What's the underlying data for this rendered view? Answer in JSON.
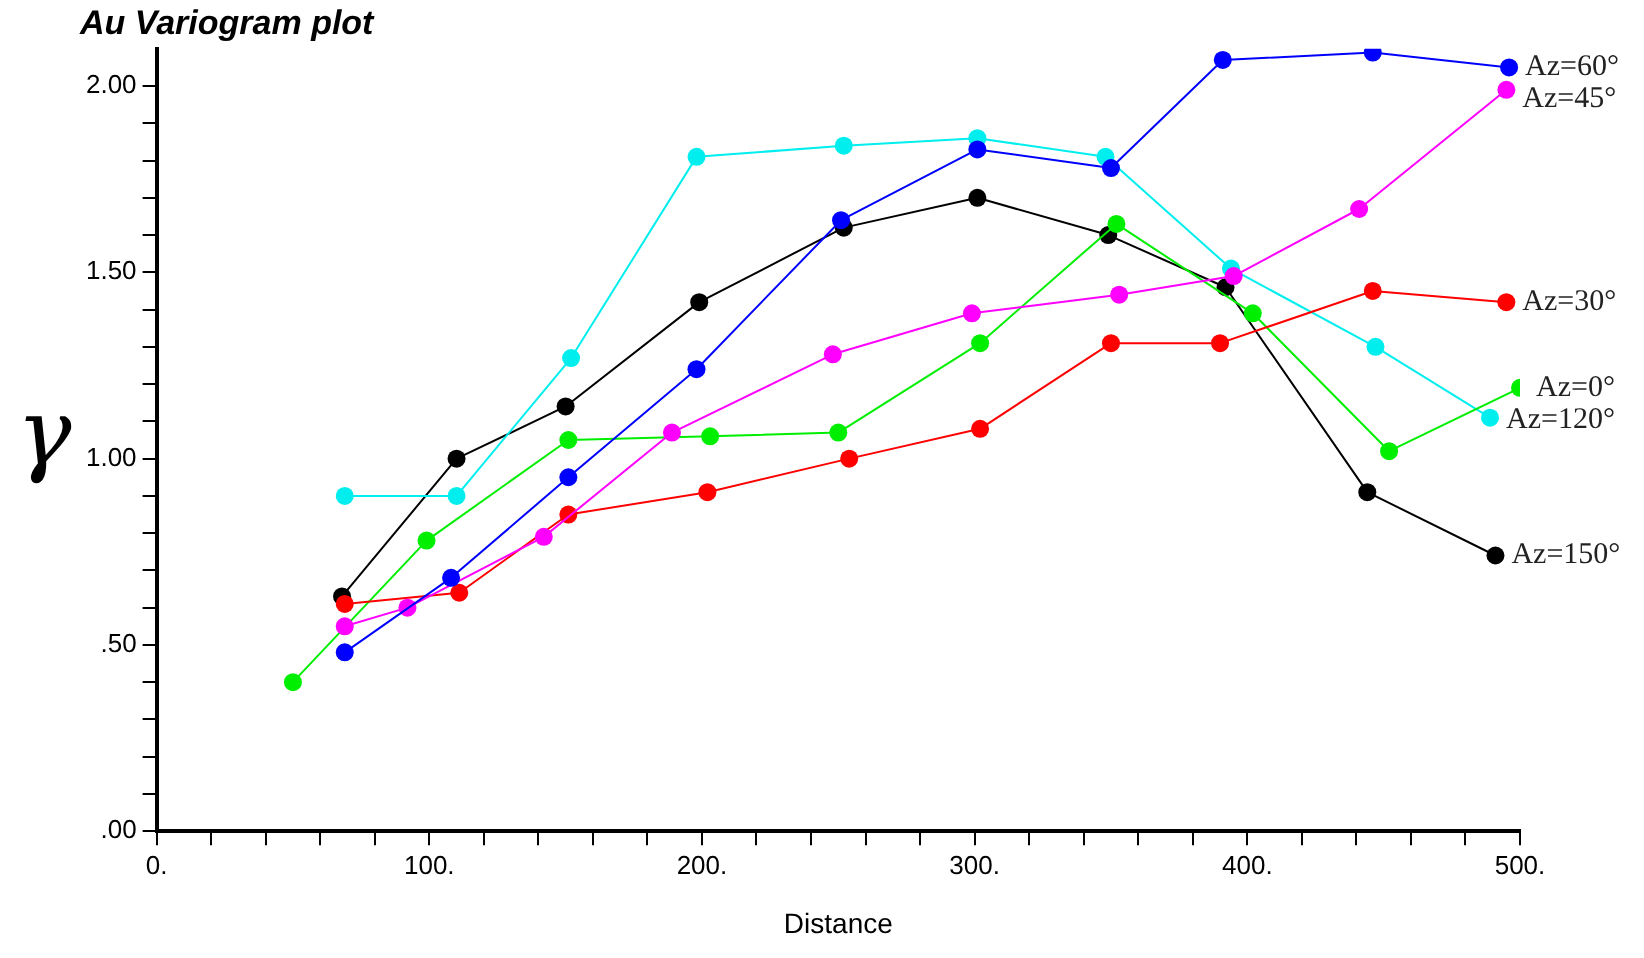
{
  "chart_data": {
    "type": "line",
    "title": "Au Variogram plot",
    "xlabel": "Distance",
    "ylabel": "γ",
    "xlim": [
      0,
      500
    ],
    "ylim": [
      0,
      2.1
    ],
    "xticks": [
      {
        "value": 0,
        "label": "0."
      },
      {
        "value": 20,
        "label": null
      },
      {
        "value": 40,
        "label": null
      },
      {
        "value": 60,
        "label": null
      },
      {
        "value": 80,
        "label": null
      },
      {
        "value": 100,
        "label": "100."
      },
      {
        "value": 120,
        "label": null
      },
      {
        "value": 140,
        "label": null
      },
      {
        "value": 160,
        "label": null
      },
      {
        "value": 180,
        "label": null
      },
      {
        "value": 200,
        "label": "200."
      },
      {
        "value": 220,
        "label": null
      },
      {
        "value": 240,
        "label": null
      },
      {
        "value": 260,
        "label": null
      },
      {
        "value": 280,
        "label": null
      },
      {
        "value": 300,
        "label": "300."
      },
      {
        "value": 320,
        "label": null
      },
      {
        "value": 340,
        "label": null
      },
      {
        "value": 360,
        "label": null
      },
      {
        "value": 380,
        "label": null
      },
      {
        "value": 400,
        "label": "400."
      },
      {
        "value": 420,
        "label": null
      },
      {
        "value": 440,
        "label": null
      },
      {
        "value": 460,
        "label": null
      },
      {
        "value": 480,
        "label": null
      },
      {
        "value": 500,
        "label": "500."
      }
    ],
    "yticks": [
      {
        "value": 0,
        "label": ".00"
      },
      {
        "value": 0.1,
        "label": null
      },
      {
        "value": 0.2,
        "label": null
      },
      {
        "value": 0.3,
        "label": null
      },
      {
        "value": 0.4,
        "label": null
      },
      {
        "value": 0.5,
        "label": ".50"
      },
      {
        "value": 0.6,
        "label": null
      },
      {
        "value": 0.7,
        "label": null
      },
      {
        "value": 0.8,
        "label": null
      },
      {
        "value": 0.9,
        "label": null
      },
      {
        "value": 1.0,
        "label": "1.00"
      },
      {
        "value": 1.1,
        "label": null
      },
      {
        "value": 1.2,
        "label": null
      },
      {
        "value": 1.3,
        "label": null
      },
      {
        "value": 1.4,
        "label": null
      },
      {
        "value": 1.5,
        "label": "1.50"
      },
      {
        "value": 1.6,
        "label": null
      },
      {
        "value": 1.7,
        "label": null
      },
      {
        "value": 1.8,
        "label": null
      },
      {
        "value": 1.9,
        "label": null
      },
      {
        "value": 2.0,
        "label": "2.00"
      }
    ],
    "marker": "circle",
    "legend": false,
    "series": [
      {
        "name": "Az=60°",
        "color": "#0000ff",
        "x": [
          69,
          108,
          151,
          198,
          251,
          301,
          350,
          391,
          446,
          496
        ],
        "values": [
          0.48,
          0.68,
          0.95,
          1.24,
          1.64,
          1.83,
          1.78,
          2.07,
          2.09,
          2.05
        ]
      },
      {
        "name": "Az=45°",
        "color": "#ff00ff",
        "x": [
          69,
          92,
          142,
          189,
          248,
          299,
          353,
          395,
          441,
          495
        ],
        "values": [
          0.55,
          0.6,
          0.79,
          1.07,
          1.28,
          1.39,
          1.44,
          1.49,
          1.67,
          1.99
        ]
      },
      {
        "name": "Az=30°",
        "color": "#ff0000",
        "x": [
          69,
          111,
          151,
          202,
          254,
          302,
          350,
          390,
          446,
          495
        ],
        "values": [
          0.61,
          0.64,
          0.85,
          0.91,
          1.0,
          1.08,
          1.31,
          1.31,
          1.45,
          1.42
        ]
      },
      {
        "name": "Az=0°",
        "color": "#00ee00",
        "x": [
          50,
          99,
          151,
          203,
          250,
          302,
          352,
          402,
          452,
          500
        ],
        "values": [
          0.4,
          0.78,
          1.05,
          1.06,
          1.07,
          1.31,
          1.63,
          1.39,
          1.02,
          1.19
        ]
      },
      {
        "name": "Az=120°",
        "color": "#00eeee",
        "x": [
          69,
          110,
          152,
          198,
          252,
          301,
          348,
          394,
          447,
          489
        ],
        "values": [
          0.9,
          0.9,
          1.27,
          1.81,
          1.84,
          1.86,
          1.81,
          1.51,
          1.3,
          1.11
        ]
      },
      {
        "name": "Az=150°",
        "color": "#000000",
        "x": [
          68,
          110,
          150,
          199,
          252,
          301,
          349,
          392,
          444,
          491
        ],
        "values": [
          0.63,
          1.0,
          1.14,
          1.42,
          1.62,
          1.7,
          1.6,
          1.46,
          0.91,
          0.74
        ]
      }
    ]
  }
}
